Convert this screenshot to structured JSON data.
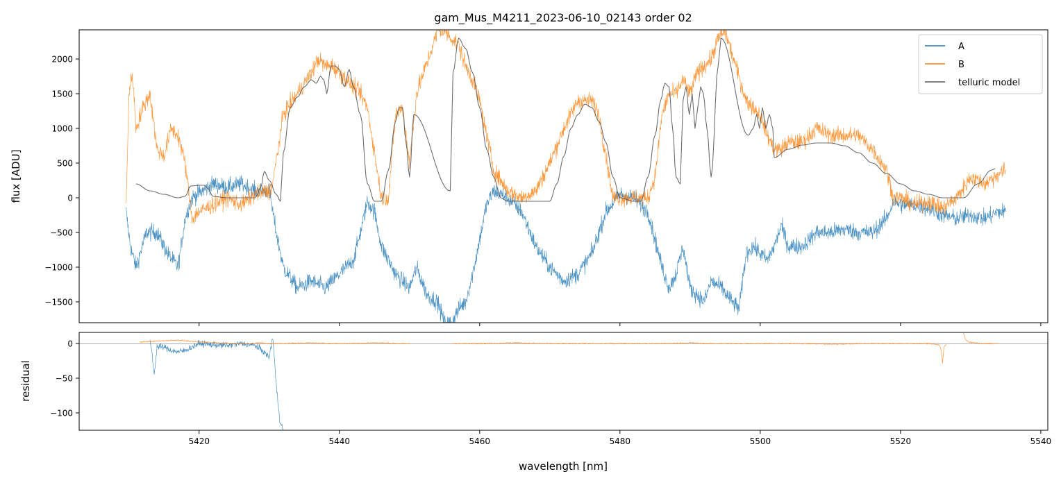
{
  "chart_data": [
    {
      "type": "line",
      "title": "gam_Mus_M4211_2023-06-10_02143  order 02",
      "xlabel": "",
      "ylabel": "flux [ADU]",
      "xlim": [
        5402.9,
        5541.0
      ],
      "ylim": [
        -1800,
        2420
      ],
      "yticks": [
        -1500,
        -1000,
        -500,
        0,
        500,
        1000,
        1500,
        2000
      ],
      "ytick_labels": [
        "−1500",
        "−1000",
        "−500",
        "0",
        "500",
        "1000",
        "1500",
        "2000"
      ],
      "xticks": [
        5420,
        5440,
        5460,
        5480,
        5500,
        5520,
        5540
      ],
      "grid": false,
      "legend_position": "top-right",
      "legend": [
        "A",
        "B",
        "telluric model"
      ],
      "series": [
        {
          "name": "A",
          "color": "#1f77b4",
          "noise": 110,
          "x": [
            5409.6,
            5410.2,
            5411,
            5412.5,
            5414,
            5415.5,
            5417,
            5418,
            5419,
            5420.5,
            5422,
            5424,
            5426,
            5428,
            5430,
            5431,
            5432,
            5434,
            5436,
            5438,
            5440,
            5442,
            5443,
            5444,
            5445,
            5446,
            5447,
            5448,
            5449,
            5450,
            5451,
            5452.5,
            5454,
            5455,
            5456,
            5457,
            5458,
            5459,
            5460,
            5461,
            5462,
            5464,
            5466,
            5468,
            5470,
            5472,
            5474,
            5476,
            5478,
            5480,
            5482,
            5484,
            5485,
            5486,
            5487,
            5488,
            5489,
            5490,
            5491,
            5492,
            5493,
            5494.5,
            5496,
            5497,
            5498,
            5499,
            5500,
            5501,
            5502,
            5503,
            5504,
            5506,
            5508,
            5510,
            5512,
            5514,
            5516,
            5518,
            5519,
            5520,
            5522,
            5524,
            5526,
            5528,
            5530,
            5532,
            5534,
            5535
          ],
          "y": [
            -200,
            -700,
            -1000,
            -500,
            -500,
            -800,
            -1000,
            -300,
            0,
            100,
            200,
            150,
            200,
            100,
            100,
            -500,
            -1000,
            -1300,
            -1200,
            -1300,
            -1100,
            -900,
            -500,
            -50,
            -200,
            -700,
            -900,
            -1100,
            -1200,
            -1300,
            -1000,
            -1400,
            -1500,
            -1800,
            -1800,
            -1600,
            -1500,
            -1100,
            -600,
            -100,
            100,
            0,
            -200,
            -700,
            -1000,
            -1200,
            -1100,
            -800,
            -200,
            50,
            0,
            -200,
            -600,
            -1000,
            -1300,
            -1100,
            -700,
            -1300,
            -1400,
            -1500,
            -1200,
            -1300,
            -1500,
            -1600,
            -800,
            -700,
            -800,
            -900,
            -700,
            -400,
            -700,
            -700,
            -500,
            -500,
            -450,
            -500,
            -500,
            -300,
            -50,
            -100,
            -100,
            -150,
            -250,
            -300,
            -250,
            -300,
            -200,
            -200
          ]
        },
        {
          "name": "B",
          "color": "#ff7f0e",
          "noise": 110,
          "x": [
            5409.6,
            5410,
            5410.5,
            5411,
            5412,
            5413,
            5414,
            5415,
            5416,
            5417,
            5418,
            5419,
            5420,
            5422,
            5424,
            5426,
            5428,
            5430,
            5430.5,
            5432,
            5434,
            5436,
            5437,
            5438,
            5439,
            5440,
            5441,
            5442,
            5443,
            5444,
            5446,
            5447,
            5448,
            5449,
            5450,
            5451,
            5454,
            5455,
            5456,
            5457,
            5458,
            5459,
            5460,
            5462,
            5464,
            5466,
            5468,
            5470,
            5472,
            5473,
            5474,
            5475,
            5476,
            5477,
            5478,
            5479,
            5480,
            5482,
            5484,
            5485,
            5486,
            5487,
            5488,
            5489,
            5490,
            5491,
            5492,
            5493,
            5494,
            5495,
            5498,
            5499,
            5500,
            5501,
            5502,
            5503,
            5504,
            5506,
            5508,
            5510,
            5512,
            5514,
            5516,
            5518,
            5519,
            5520,
            5522,
            5524,
            5526,
            5528,
            5530,
            5532,
            5534,
            5535
          ],
          "y": [
            -50,
            1500,
            1800,
            1000,
            1300,
            1500,
            700,
            600,
            1000,
            900,
            500,
            -300,
            -200,
            -100,
            0,
            -100,
            50,
            100,
            200,
            1200,
            1500,
            1800,
            2000,
            1900,
            1900,
            1800,
            1700,
            1600,
            1500,
            1300,
            0,
            0,
            1200,
            1300,
            500,
            1500,
            2400,
            2400,
            2300,
            2200,
            1900,
            1700,
            1400,
            400,
            100,
            0,
            100,
            500,
            1000,
            1200,
            1400,
            1400,
            1400,
            1200,
            600,
            0,
            0,
            0,
            0,
            300,
            1200,
            1500,
            1500,
            1700,
            1500,
            1800,
            1900,
            2000,
            2300,
            2400,
            1400,
            1300,
            1200,
            900,
            700,
            700,
            800,
            800,
            1000,
            900,
            900,
            900,
            700,
            400,
            0,
            0,
            -100,
            -50,
            -150,
            0,
            300,
            200,
            350,
            400
          ]
        },
        {
          "name": "telluric model",
          "color": "#555555",
          "noise": 0,
          "x": [
            5411,
            5413,
            5415,
            5417,
            5418,
            5418.8,
            5420,
            5420.8,
            5421.2,
            5422,
            5424,
            5428,
            5428.8,
            5429.3,
            5430,
            5431,
            5431.6,
            5432,
            5433,
            5434,
            5435,
            5436,
            5436.7,
            5437.3,
            5437.8,
            5438.2,
            5438.8,
            5439.4,
            5440,
            5440.7,
            5441.4,
            5442,
            5443,
            5444,
            5445,
            5446,
            5447,
            5448,
            5448.5,
            5449,
            5449.5,
            5450,
            5450.6,
            5455.8,
            5456.2,
            5457,
            5458,
            5459,
            5460,
            5461,
            5462,
            5463,
            5464,
            5466,
            5468,
            5470,
            5471,
            5472,
            5473,
            5474,
            5475,
            5476,
            5477,
            5478,
            5479,
            5480,
            5482,
            5483,
            5484,
            5485,
            5485.8,
            5486.4,
            5487,
            5487.5,
            5488,
            5488.6,
            5489,
            5489.4,
            5489.9,
            5490.3,
            5490.7,
            5491.1,
            5491.5,
            5491.9,
            5492.4,
            5493,
            5494,
            5494.4,
            5498.3,
            5499,
            5499.5,
            5499.9,
            5500.3,
            5500.8,
            5501.3,
            5501.8,
            5502,
            5504,
            5506,
            5508,
            5510,
            5512,
            5514,
            5516,
            5518,
            5520,
            5522,
            5524,
            5526,
            5529,
            5531,
            5533,
            5533.5
          ],
          "y": [
            200,
            100,
            50,
            0,
            20,
            170,
            180,
            180,
            140,
            20,
            0,
            0,
            150,
            380,
            250,
            50,
            -50,
            650,
            1300,
            1450,
            1600,
            1700,
            1650,
            1750,
            1700,
            1500,
            1900,
            1900,
            1850,
            1600,
            1850,
            1600,
            1200,
            200,
            -50,
            -50,
            400,
            1100,
            1300,
            1300,
            800,
            300,
            1200,
            100,
            1800,
            2300,
            2150,
            1800,
            1300,
            700,
            300,
            0,
            -50,
            -50,
            -50,
            -50,
            200,
            600,
            1000,
            1200,
            1350,
            1300,
            1100,
            800,
            300,
            0,
            -50,
            -50,
            300,
            900,
            1400,
            1650,
            1600,
            1000,
            300,
            200,
            1400,
            1600,
            1200,
            1500,
            1000,
            1300,
            1600,
            1500,
            1000,
            300,
            1900,
            2300,
            900,
            1000,
            1200,
            1000,
            1300,
            1000,
            1200,
            1000,
            580,
            700,
            760,
            790,
            790,
            750,
            650,
            500,
            350,
            200,
            100,
            50,
            0,
            0,
            200,
            400,
            420
          ]
        }
      ]
    },
    {
      "type": "line",
      "title": "",
      "xlabel": "wavelength [nm]",
      "ylabel": "residual",
      "xlim": [
        5402.9,
        5541.0
      ],
      "ylim": [
        -125,
        16
      ],
      "yticks": [
        -100,
        -50,
        0
      ],
      "ytick_labels": [
        "−100",
        "−50",
        "0"
      ],
      "xticks": [
        5420,
        5440,
        5460,
        5480,
        5500,
        5520,
        5540
      ],
      "xtick_labels": [
        "5420",
        "5440",
        "5460",
        "5480",
        "5500",
        "5520",
        "5540"
      ],
      "hline": 0,
      "grid": false,
      "series": [
        {
          "name": "A",
          "color": "#1f77b4",
          "noise": 4,
          "x": [
            5413,
            5413.3,
            5413.6,
            5414,
            5415,
            5416,
            5417,
            5418,
            5419,
            5420,
            5422,
            5424,
            5426,
            5428,
            5429,
            5430,
            5430.5,
            5431,
            5431.5,
            5432
          ],
          "y": [
            5,
            -15,
            -45,
            -5,
            -5,
            -10,
            -12,
            -10,
            -5,
            0,
            -2,
            -3,
            0,
            -3,
            -10,
            -20,
            10,
            -60,
            -110,
            -125
          ]
        },
        {
          "name": "B",
          "color": "#ff7f0e",
          "noise": 0.8,
          "x": [
            5411.5,
            5413,
            5415,
            5417,
            5419,
            5421,
            5423,
            5425,
            5427,
            5429,
            5430,
            5432,
            5435,
            5440,
            5445,
            5450,
            5451,
            5456,
            5460,
            5465,
            5470,
            5475,
            5480,
            5485,
            5490,
            5493,
            5499,
            5502,
            5505,
            5510,
            5515,
            5520,
            5524,
            5525.5,
            5525.8,
            5526,
            5526.2,
            5526.5,
            5528.8,
            5529,
            5529.3,
            5529.8,
            5530.5,
            5532,
            5534
          ],
          "y": [
            2,
            3,
            4,
            5,
            3,
            2,
            1,
            0,
            0,
            1,
            0,
            0,
            1,
            0,
            1,
            0,
            null,
            0,
            0,
            1,
            0,
            0,
            0,
            0,
            1,
            0,
            0,
            0,
            0,
            -1,
            0,
            0,
            0,
            -2,
            -10,
            -28,
            -5,
            -1,
            null,
            14,
            5,
            2,
            1,
            0,
            0
          ]
        }
      ]
    }
  ]
}
